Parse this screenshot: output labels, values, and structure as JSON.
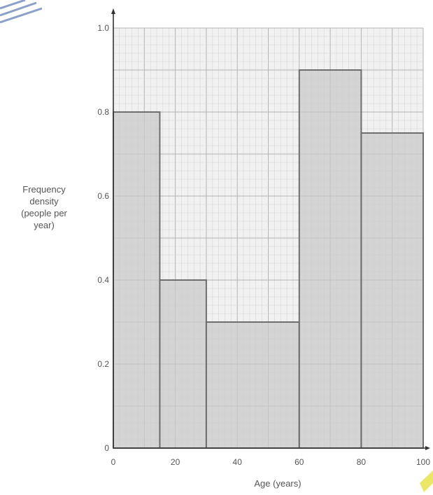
{
  "chart_data": {
    "type": "bar",
    "title": "",
    "xlabel": "Age (years)",
    "ylabel_lines": [
      "Frequency",
      "density",
      "(people per",
      "year)"
    ],
    "xlim": [
      0,
      100
    ],
    "ylim": [
      0,
      1.0
    ],
    "xticks": [
      "0",
      "20",
      "40",
      "60",
      "80",
      "100"
    ],
    "xtick_values": [
      0,
      20,
      40,
      60,
      80,
      100
    ],
    "yticks": [
      "0",
      "0.2",
      "0.4",
      "0.6",
      "0.8",
      "1.0"
    ],
    "ytick_values": [
      0,
      0.2,
      0.4,
      0.6,
      0.8,
      1.0
    ],
    "grid": true,
    "bins": [
      {
        "x0": 0,
        "x1": 15,
        "value": 0.8
      },
      {
        "x0": 15,
        "x1": 30,
        "value": 0.4
      },
      {
        "x0": 30,
        "x1": 60,
        "value": 0.3
      },
      {
        "x0": 60,
        "x1": 80,
        "value": 0.9
      },
      {
        "x0": 80,
        "x1": 100,
        "value": 0.75
      }
    ],
    "colors": {
      "bar_fill": "#c9c9c9",
      "bar_stroke": "#6e6e6e",
      "grid_minor": "#d6d6d6",
      "grid_major": "#b4b4b4",
      "plot_bg": "#f1f1f1",
      "axis": "#333333"
    }
  }
}
